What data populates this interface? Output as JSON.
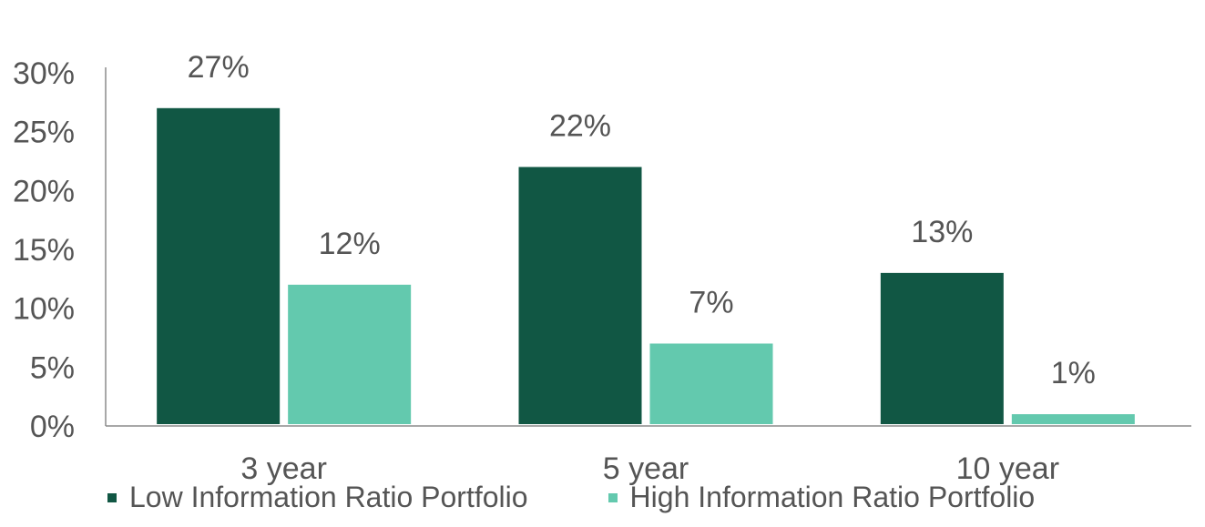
{
  "chart_data": {
    "type": "bar",
    "categories": [
      "3 year",
      "5 year",
      "10 year"
    ],
    "series": [
      {
        "name": "Low Information Ratio Portfolio",
        "values": [
          27,
          22,
          13
        ],
        "labels": [
          "27%",
          "22%",
          "13%"
        ],
        "color": "#115744"
      },
      {
        "name": "High Information Ratio Portfolio",
        "values": [
          12,
          7,
          1
        ],
        "labels": [
          "12%",
          "7%",
          "1%"
        ],
        "color": "#63c9ae"
      }
    ],
    "yticks": [
      "0%",
      "5%",
      "10%",
      "15%",
      "20%",
      "25%",
      "30%"
    ],
    "ytick_values": [
      0,
      5,
      10,
      15,
      20,
      25,
      30
    ],
    "ylim": [
      0,
      30
    ],
    "grid": false,
    "legend_position": "bottom-left"
  }
}
